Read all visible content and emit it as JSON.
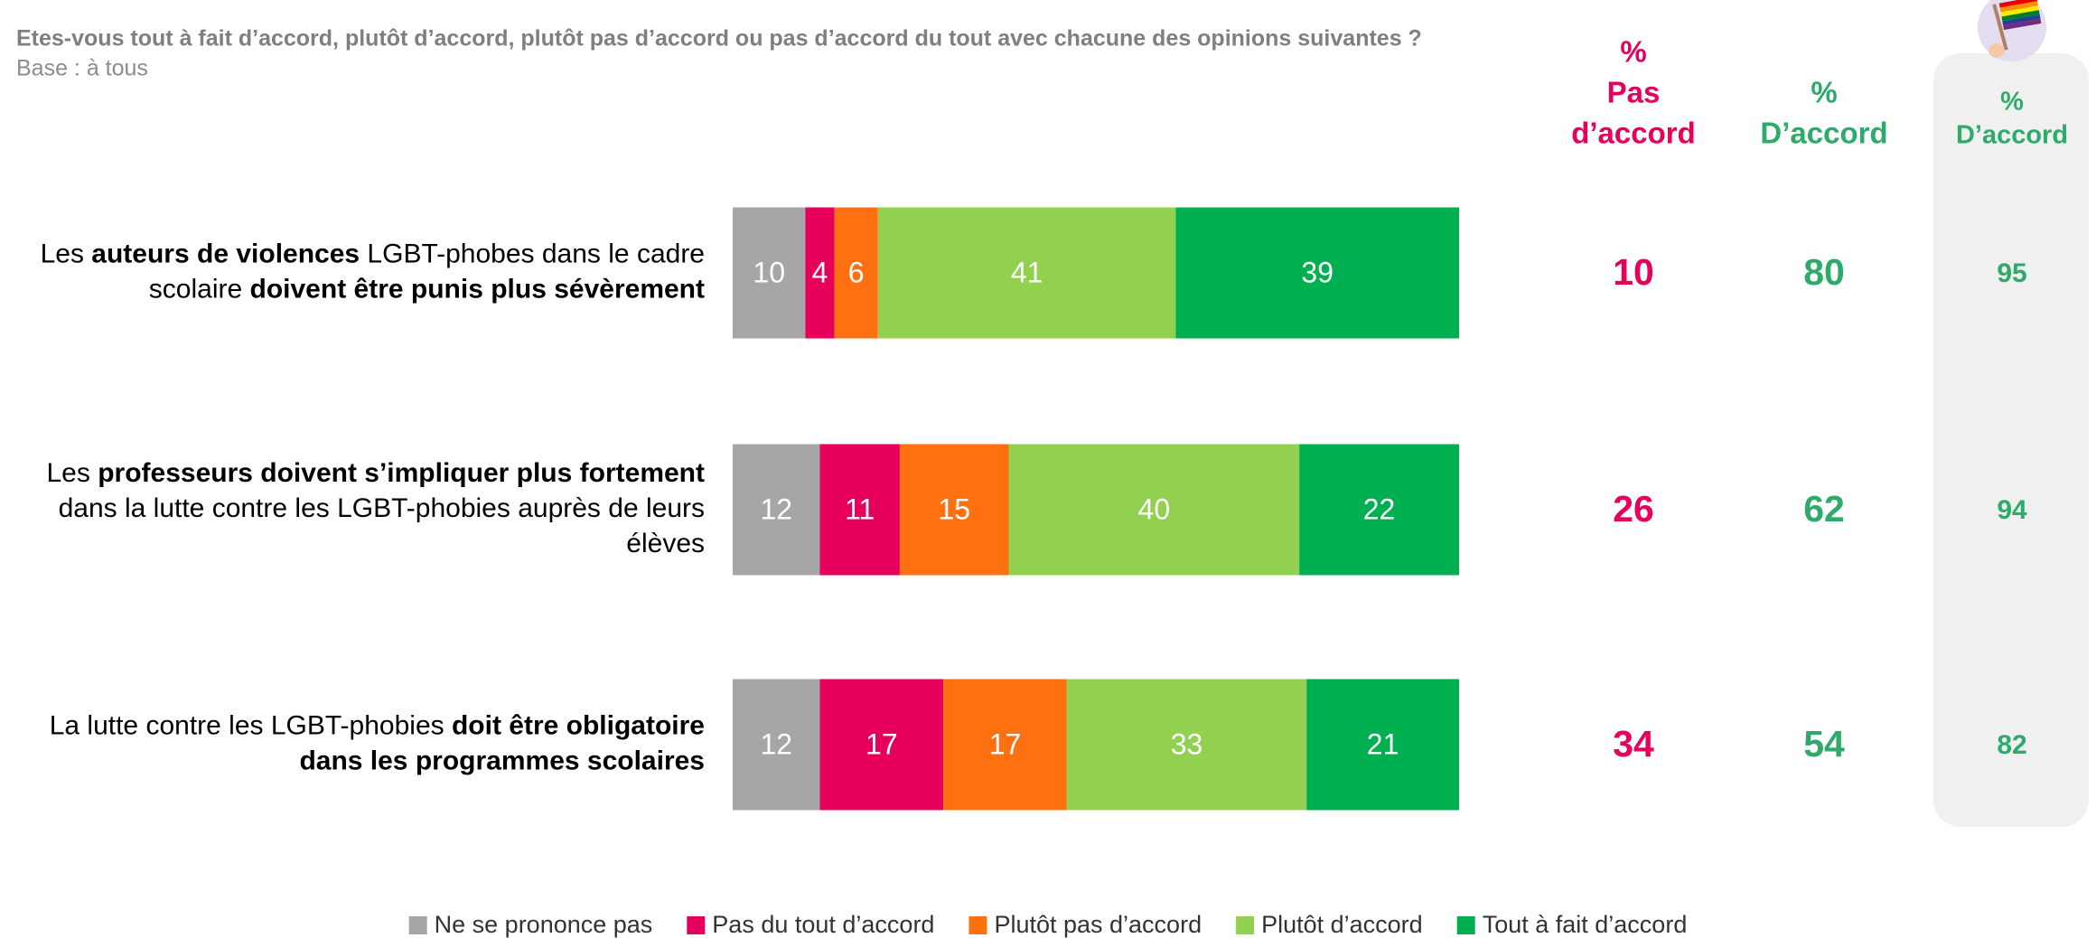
{
  "chart_data": {
    "type": "stacked-bar-horizontal",
    "title": "Etes-vous tout à fait d’accord, plutôt d’accord, plutôt pas d’accord ou pas d’accord du tout avec chacune des opinions suivantes ?",
    "subtitle": "Base :  à tous",
    "categories": [
      [
        [
          {
            "text": "Les "
          },
          {
            "text": "auteurs de violences",
            "bold": true
          },
          {
            "text": " LGBT-phobes dans le cadre"
          }
        ],
        [
          {
            "text": "scolaire "
          },
          {
            "text": "doivent être punis plus sévèrement",
            "bold": true
          }
        ]
      ],
      [
        [
          {
            "text": "Les "
          },
          {
            "text": "professeurs doivent s’impliquer plus fortement",
            "bold": true
          }
        ],
        [
          {
            "text": "dans la lutte contre les LGBT-phobies auprès de leurs"
          }
        ],
        [
          {
            "text": "élèves"
          }
        ]
      ],
      [
        [
          {
            "text": "La lutte contre les LGBT-phobies "
          },
          {
            "text": "doit être obligatoire",
            "bold": true
          }
        ],
        [
          {
            "text": "dans les programmes scolaires",
            "bold": true
          }
        ]
      ]
    ],
    "series": [
      {
        "name": "Ne se prononce pas",
        "color": "#a6a6a6",
        "values": [
          10,
          12,
          12
        ]
      },
      {
        "name": "Pas du tout d’accord",
        "color": "#e6005c",
        "values": [
          4,
          11,
          17
        ]
      },
      {
        "name": "Plutôt pas d’accord",
        "color": "#ff7010",
        "values": [
          6,
          15,
          17
        ]
      },
      {
        "name": "Plutôt d’accord",
        "color": "#92d050",
        "values": [
          41,
          40,
          33
        ]
      },
      {
        "name": "Tout à fait d’accord",
        "color": "#00b050",
        "values": [
          39,
          22,
          21
        ]
      }
    ],
    "xlim": [
      0,
      100
    ],
    "columns": [
      {
        "header": [
          "%",
          "Pas",
          "d’accord"
        ],
        "color": "#e6005c",
        "values": [
          10,
          26,
          34
        ]
      },
      {
        "header": [
          "%",
          "D’accord"
        ],
        "color": "#2eaa6a",
        "values": [
          80,
          62,
          54
        ]
      },
      {
        "header": [
          "%",
          "D’accord"
        ],
        "color": "#2eaa6a",
        "values": [
          95,
          94,
          82
        ]
      }
    ]
  }
}
